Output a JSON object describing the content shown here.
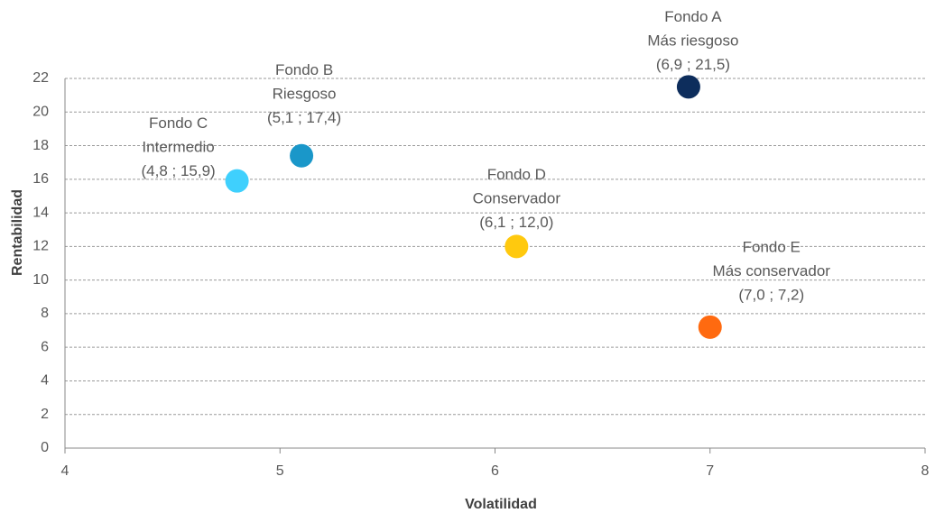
{
  "chart_data": {
    "type": "scatter",
    "x_label": "Volatilidad",
    "y_label": "Rentabilidad",
    "x": [
      6.9,
      5.1,
      4.8,
      6.1,
      7.0
    ],
    "values": [
      21.5,
      17.4,
      15.9,
      12.0,
      7.2
    ],
    "names": [
      "Fondo A",
      "Fondo B",
      "Fondo C",
      "Fondo D",
      "Fondo E"
    ],
    "descriptions": [
      "Más riesgoso",
      "Riesgoso",
      "Intermedio",
      "Conservador",
      "Más conservador"
    ],
    "value_labels": [
      "(6,9 ; 21,5)",
      "(5,1 ; 17,4)",
      "(4,8 ; 15,9)",
      "(6,1 ; 12,0)",
      "(7,0 ; 7,2)"
    ],
    "colors": [
      "#0d2d5c",
      "#1a97c9",
      "#3fd0fd",
      "#ffc90e",
      "#ff6a10"
    ],
    "xlim": [
      4,
      8
    ],
    "xticks": [
      4,
      5,
      6,
      7,
      8
    ],
    "ylim": [
      0,
      22
    ],
    "yticks": [
      0,
      2,
      4,
      6,
      8,
      10,
      12,
      14,
      16,
      18,
      20,
      22
    ],
    "grid": true
  }
}
